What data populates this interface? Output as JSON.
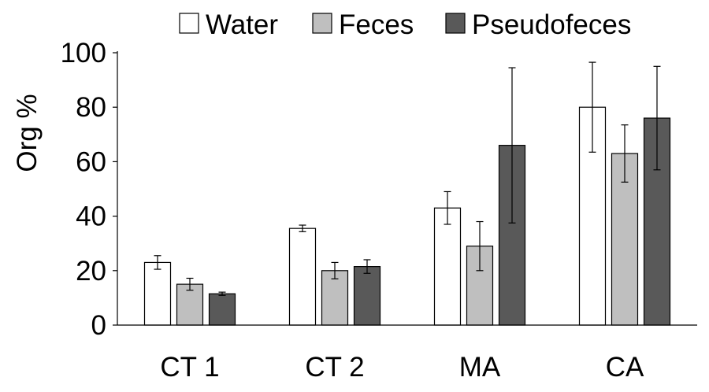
{
  "chart_data": {
    "type": "bar",
    "title": "",
    "xlabel": "",
    "ylabel": "Org %",
    "ylim": [
      0,
      100
    ],
    "yticks": [
      0,
      20,
      40,
      60,
      80,
      100
    ],
    "categories": [
      "CT 1",
      "CT 2",
      "MA",
      "CA"
    ],
    "legend_position": "top",
    "grid": false,
    "series": [
      {
        "name": "Water",
        "color": "#ffffff",
        "values": [
          23,
          35.5,
          43,
          80
        ],
        "errors": [
          2.5,
          1.2,
          6,
          16.5
        ]
      },
      {
        "name": "Feces",
        "color": "#bfbfbf",
        "values": [
          15,
          20,
          29,
          63
        ],
        "errors": [
          2.2,
          3,
          9,
          10.5
        ]
      },
      {
        "name": "Pseudofeces",
        "color": "#595959",
        "values": [
          11.5,
          21.5,
          66,
          76
        ],
        "errors": [
          0.6,
          2.5,
          28.5,
          19
        ]
      }
    ]
  }
}
